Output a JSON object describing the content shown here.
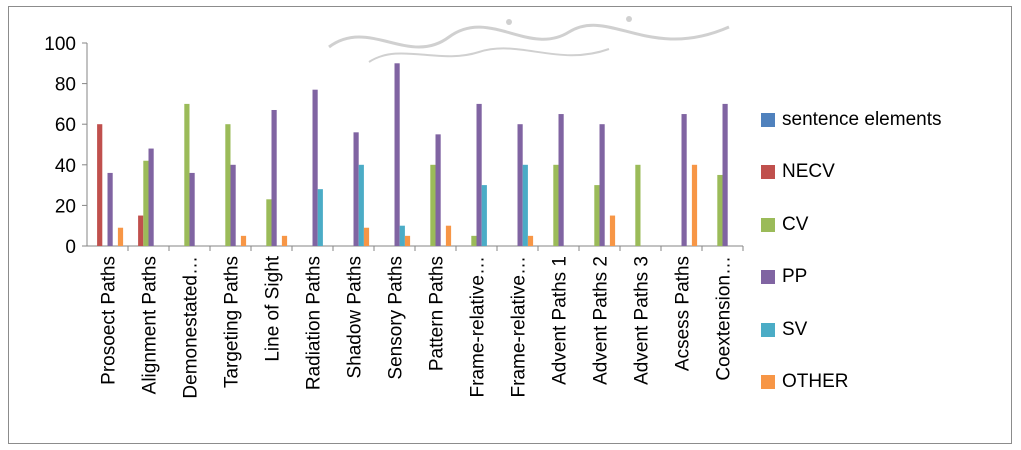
{
  "chart_data": {
    "type": "bar",
    "title": "",
    "xlabel": "",
    "ylabel": "",
    "ylim": [
      0,
      100
    ],
    "yticks": [
      0,
      20,
      40,
      60,
      80,
      100
    ],
    "grid": false,
    "legend_position": "right",
    "categories": [
      "Prosoect Paths",
      "Alignment Paths",
      "Demonestated…",
      "Targeting Paths",
      "Line of Sight",
      "Radiation Paths",
      "Shadow Paths",
      "Sensory Paths",
      "Pattern Paths",
      "Frame-relative…",
      "Frame-relative…",
      "Advent Paths 1",
      "Advent Paths 2",
      "Advent Paths 3",
      "Acsess Paths",
      "Coextension…"
    ],
    "series": [
      {
        "name": "sentence elements",
        "color": "#4f81bd",
        "values": [
          0,
          0,
          0,
          0,
          0,
          0,
          0,
          0,
          0,
          0,
          0,
          0,
          0,
          0,
          0,
          0
        ]
      },
      {
        "name": "NECV",
        "color": "#c0504d",
        "values": [
          60,
          15,
          0,
          0,
          0,
          0,
          0,
          0,
          0,
          0,
          0,
          0,
          0,
          0,
          0,
          0
        ]
      },
      {
        "name": "CV",
        "color": "#9bbb59",
        "values": [
          0,
          42,
          70,
          60,
          23,
          0,
          0,
          0,
          40,
          5,
          0,
          40,
          30,
          40,
          0,
          35
        ]
      },
      {
        "name": "PP",
        "color": "#8064a2",
        "values": [
          36,
          48,
          36,
          40,
          67,
          77,
          56,
          90,
          55,
          70,
          60,
          65,
          60,
          0,
          65,
          70
        ]
      },
      {
        "name": "SV",
        "color": "#4bacc6",
        "values": [
          0,
          0,
          0,
          0,
          0,
          28,
          40,
          10,
          0,
          30,
          40,
          0,
          0,
          0,
          0,
          0
        ]
      },
      {
        "name": "OTHER",
        "color": "#f79646",
        "values": [
          9,
          0,
          0,
          5,
          5,
          0,
          9,
          5,
          10,
          0,
          5,
          0,
          15,
          0,
          40,
          0
        ]
      }
    ]
  }
}
